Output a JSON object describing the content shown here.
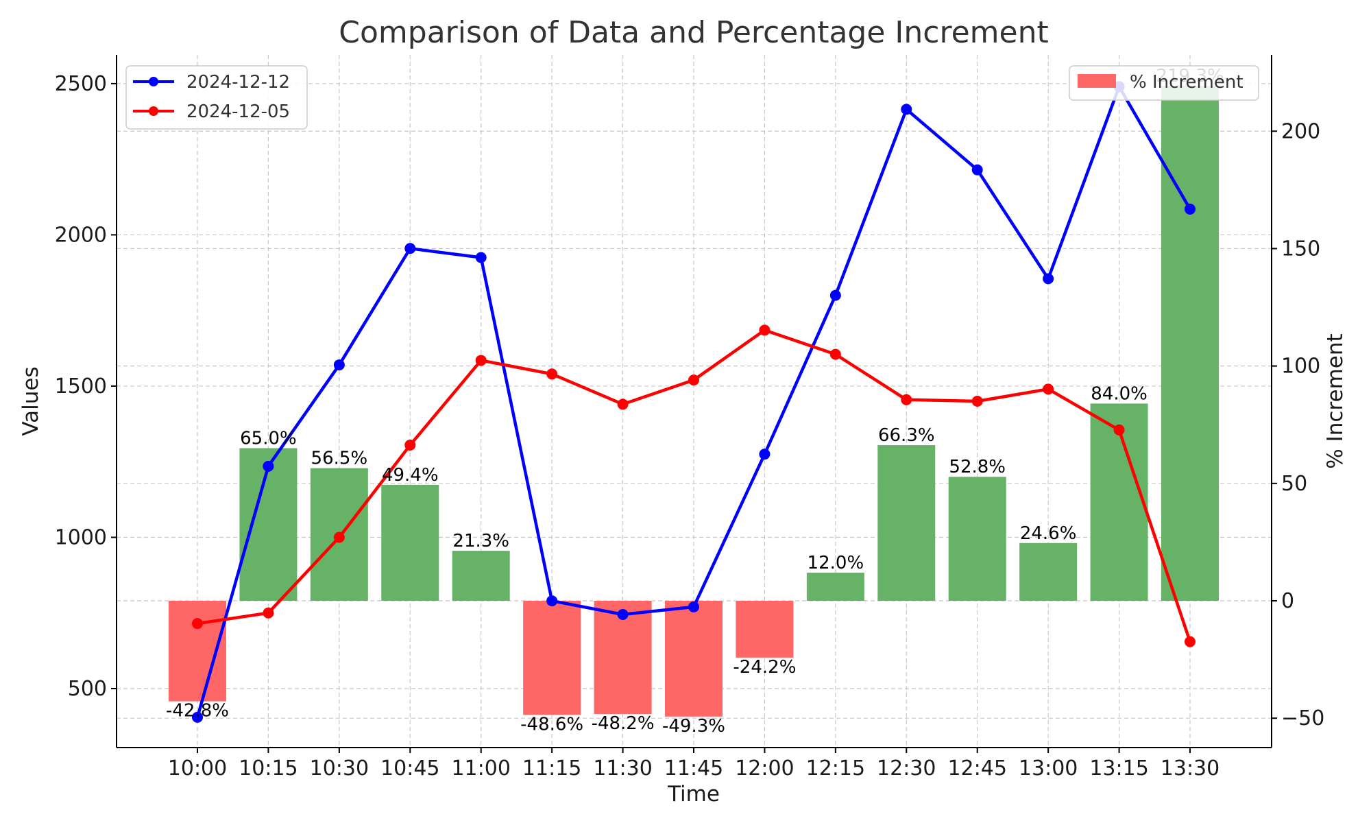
{
  "chart_data": {
    "type": "bar",
    "title": "Comparison of Data and Percentage Increment",
    "xlabel": "Time",
    "ylabel": "Values",
    "y2label": "% Increment",
    "categories": [
      "10:00",
      "10:15",
      "10:30",
      "10:45",
      "11:00",
      "11:15",
      "11:30",
      "11:45",
      "12:00",
      "12:15",
      "12:30",
      "12:45",
      "13:00",
      "13:15",
      "13:30"
    ],
    "ylim": [
      305,
      2595
    ],
    "y2lim": [
      -62.5,
      232.5
    ],
    "yticks": [
      500,
      1000,
      1500,
      2000,
      2500
    ],
    "y2ticks": [
      -50,
      0,
      50,
      100,
      150,
      200
    ],
    "y2tick_labels": [
      "−50",
      "0",
      "50",
      "100",
      "150",
      "200"
    ],
    "grid": true,
    "line_series": [
      {
        "name": "2024-12-12",
        "color": "#0000ff",
        "values": [
          405,
          1235,
          1570,
          1955,
          1925,
          790,
          745,
          770,
          1275,
          1800,
          2415,
          2215,
          1855,
          2490,
          2085
        ]
      },
      {
        "name": "2024-12-05",
        "color": "#ff0000",
        "values": [
          715,
          750,
          1000,
          1305,
          1585,
          1540,
          1440,
          1520,
          1685,
          1605,
          1455,
          1450,
          1490,
          1355,
          655
        ]
      }
    ],
    "bar_series": {
      "name": "% Increment",
      "legend_color": "#ff6666",
      "positive_color": "#66b266",
      "negative_color": "#ff6666",
      "values": [
        -42.8,
        65.0,
        56.5,
        49.4,
        21.3,
        -48.6,
        -48.2,
        -49.3,
        -24.2,
        12.0,
        66.3,
        52.8,
        24.6,
        84.0,
        219.3
      ],
      "labels": [
        "-42.8%",
        "65.0%",
        "56.5%",
        "49.4%",
        "21.3%",
        "-48.6%",
        "-48.2%",
        "-49.3%",
        "-24.2%",
        "12.0%",
        "66.3%",
        "52.8%",
        "24.6%",
        "84.0%",
        "219.3%"
      ]
    },
    "legend_left_position": "upper left",
    "legend_right_position": "upper right"
  }
}
